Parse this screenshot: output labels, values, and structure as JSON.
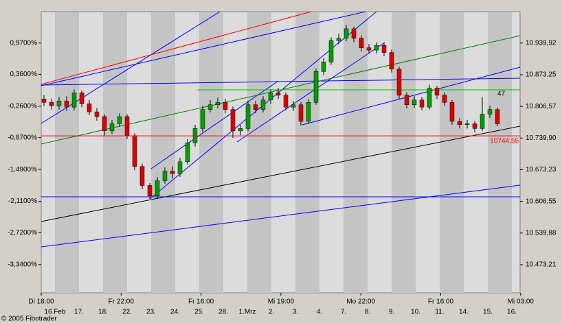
{
  "chart_data": {
    "type": "candlestick",
    "footer": "© 2005 Fibotrader",
    "ylim": [
      10414,
      11006
    ],
    "yticks": [
      {
        "value": 10939.92,
        "label": "10.939,92"
      },
      {
        "value": 10873.25,
        "label": "10.873,25"
      },
      {
        "value": 10806.57,
        "label": "10.806,57"
      },
      {
        "value": 10739.9,
        "label": "10.739,90"
      },
      {
        "value": 10673.23,
        "label": "10.673,23"
      },
      {
        "value": 10606.55,
        "label": "10.606,55"
      },
      {
        "value": 10539.88,
        "label": "10.539,88"
      },
      {
        "value": 10473.21,
        "label": "10.473,21"
      }
    ],
    "y2lim": [
      -3.89,
      1.58
    ],
    "y2ticks": [
      {
        "value": 0.97,
        "label": "0,9700%"
      },
      {
        "value": 0.36,
        "label": "0,3600%"
      },
      {
        "value": -0.26,
        "label": "-0,2600%"
      },
      {
        "value": -0.87,
        "label": "-0,8700%"
      },
      {
        "value": -1.49,
        "label": "-1,4900%"
      },
      {
        "value": -2.11,
        "label": "-2,1100%"
      },
      {
        "value": -2.72,
        "label": "-2,7200%"
      },
      {
        "value": -3.34,
        "label": "-3,3400%"
      }
    ],
    "time_labels": [
      "Di 18:00",
      "Fr 22:00",
      "Fr 16:00",
      "Mi 19:00",
      "Mo 22:00",
      "Fr 16:00",
      "Mi 03:00"
    ],
    "date_labels": [
      "16.Feb",
      "17.",
      "18.",
      "22.",
      "23.",
      "24.",
      "25.",
      "28.",
      "1.Mrz",
      "2.",
      "3.",
      "4.",
      "7.",
      "8.",
      "9.",
      "10.",
      "11.",
      "14.",
      "15.",
      "16."
    ],
    "price_line": {
      "value": 10744.55,
      "label": "10744,55",
      "color": "#ff0000"
    },
    "annotation": "47",
    "up_color": "#00a000",
    "down_color": "#e00000",
    "open": [
      10822,
      10815,
      10808,
      10818,
      10805,
      10835,
      10812,
      10795,
      10785,
      10755,
      10770,
      10785,
      10745,
      10680,
      10640,
      10618,
      10650,
      10670,
      10665,
      10690,
      10730,
      10760,
      10800,
      10810,
      10815,
      10800,
      10755,
      10760,
      10810,
      10800,
      10820,
      10835,
      10830,
      10805,
      10810,
      10775,
      10815,
      10880,
      10900,
      10945,
      10950,
      10970,
      10950,
      10930,
      10925,
      10935,
      10920,
      10885,
      10830,
      10810,
      10820,
      10805,
      10845,
      10830,
      10815,
      10775,
      10768,
      10770,
      10760,
      10790,
      10800
    ],
    "high": [
      10830,
      10823,
      10826,
      10828,
      10842,
      10840,
      10820,
      10803,
      10790,
      10778,
      10792,
      10790,
      10750,
      10686,
      10645,
      10658,
      10678,
      10680,
      10698,
      10738,
      10768,
      10808,
      10820,
      10825,
      10822,
      10806,
      10768,
      10818,
      10818,
      10828,
      10842,
      10845,
      10836,
      10818,
      10816,
      10822,
      10886,
      10908,
      10952,
      10960,
      10978,
      10975,
      10956,
      10938,
      10942,
      10940,
      10926,
      10890,
      10836,
      10828,
      10826,
      10852,
      10850,
      10836,
      10820,
      10782,
      10778,
      10776,
      10826,
      10808,
      10804
    ],
    "low": [
      10807,
      10800,
      10800,
      10797,
      10798,
      10805,
      10788,
      10776,
      10745,
      10748,
      10764,
      10738,
      10672,
      10632,
      10612,
      10612,
      10644,
      10655,
      10658,
      10684,
      10722,
      10752,
      10794,
      10802,
      10792,
      10740,
      10746,
      10754,
      10792,
      10794,
      10812,
      10822,
      10798,
      10797,
      10766,
      10770,
      10810,
      10872,
      10894,
      10938,
      10944,
      10942,
      10922,
      10918,
      10918,
      10912,
      10878,
      10822,
      10802,
      10803,
      10798,
      10800,
      10822,
      10808,
      10768,
      10760,
      10760,
      10752,
      10755,
      10782,
      10765
    ],
    "close": [
      10815,
      10808,
      10818,
      10805,
      10835,
      10812,
      10795,
      10785,
      10755,
      10770,
      10785,
      10745,
      10680,
      10640,
      10618,
      10650,
      10670,
      10665,
      10690,
      10730,
      10760,
      10800,
      10810,
      10815,
      10800,
      10755,
      10760,
      10810,
      10800,
      10820,
      10835,
      10830,
      10805,
      10810,
      10775,
      10815,
      10880,
      10900,
      10945,
      10950,
      10970,
      10950,
      10930,
      10925,
      10935,
      10920,
      10885,
      10830,
      10810,
      10820,
      10805,
      10845,
      10830,
      10815,
      10775,
      10768,
      10770,
      10760,
      10790,
      10800,
      10770
    ]
  }
}
